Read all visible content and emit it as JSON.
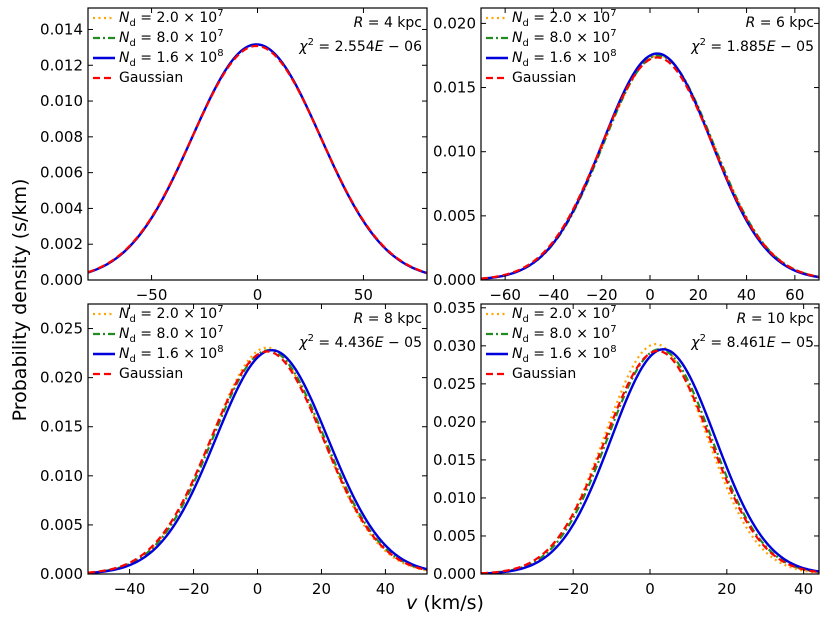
{
  "figure": {
    "ylabel": "Probability density (s/km)",
    "xlabel": "v (km/s)"
  },
  "legend": {
    "labels": [
      "N_d = 2.0 × 10^7",
      "N_d = 8.0 × 10^7",
      "N_d = 1.6 × 10^8",
      "Gaussian"
    ],
    "colors": [
      "#ffa500",
      "#228b22",
      "#0000dd",
      "#ff0000"
    ],
    "styles": [
      "dotted",
      "dashdot",
      "solid",
      "dashed"
    ]
  },
  "chart_data": [
    {
      "type": "line",
      "title": "",
      "annotation_R": "R = 4 kpc",
      "annotation_chi2": "χ² = 2.554E − 06",
      "xlim": [
        -80,
        80
      ],
      "ylim": [
        0,
        0.0152
      ],
      "xticks": [
        -50,
        0,
        50
      ],
      "yticks": [
        0.0,
        0.002,
        0.004,
        0.006,
        0.008,
        0.01,
        0.012,
        0.014
      ],
      "yformat": 3,
      "series": [
        {
          "name": "N_d = 2.0 × 10^7",
          "mean": -0.5,
          "sigma": 30.3
        },
        {
          "name": "N_d = 8.0 × 10^7",
          "mean": -0.5,
          "sigma": 30.3
        },
        {
          "name": "N_d = 1.6 × 10^8",
          "mean": -0.5,
          "sigma": 30.3
        },
        {
          "name": "Gaussian",
          "mean": -0.5,
          "sigma": 30.5
        }
      ]
    },
    {
      "type": "line",
      "title": "",
      "annotation_R": "R = 6 kpc",
      "annotation_chi2": "χ² = 1.885E − 05",
      "xlim": [
        -70,
        70
      ],
      "ylim": [
        0,
        0.0212
      ],
      "xticks": [
        -60,
        -40,
        -20,
        0,
        20,
        40,
        60
      ],
      "yticks": [
        0.0,
        0.005,
        0.01,
        0.015,
        0.02
      ],
      "yformat": 3,
      "series": [
        {
          "name": "N_d = 2.0 × 10^7",
          "mean": 3.5,
          "sigma": 22.8
        },
        {
          "name": "N_d = 8.0 × 10^7",
          "mean": 3.5,
          "sigma": 22.8
        },
        {
          "name": "N_d = 1.6 × 10^8",
          "mean": 3.0,
          "sigma": 22.6
        },
        {
          "name": "Gaussian",
          "mean": 3.0,
          "sigma": 23.0
        }
      ]
    },
    {
      "type": "line",
      "title": "",
      "annotation_R": "R = 8 kpc",
      "annotation_chi2": "χ² = 4.436E − 05",
      "xlim": [
        -53,
        53
      ],
      "ylim": [
        0,
        0.0275
      ],
      "xticks": [
        -40,
        -20,
        0,
        20,
        40
      ],
      "yticks": [
        0.0,
        0.005,
        0.01,
        0.015,
        0.02,
        0.025
      ],
      "yformat": 3,
      "series": [
        {
          "name": "N_d = 2.0 × 10^7",
          "mean": 3.0,
          "sigma": 17.3
        },
        {
          "name": "N_d = 8.0 × 10^7",
          "mean": 3.5,
          "sigma": 17.5
        },
        {
          "name": "N_d = 1.6 × 10^8",
          "mean": 4.5,
          "sigma": 17.5
        },
        {
          "name": "Gaussian",
          "mean": 3.0,
          "sigma": 17.6
        }
      ]
    },
    {
      "type": "line",
      "title": "",
      "annotation_R": "R = 10 kpc",
      "annotation_chi2": "χ² = 8.461E − 05",
      "xlim": [
        -44,
        44
      ],
      "ylim": [
        0,
        0.0355
      ],
      "xticks": [
        -20,
        0,
        20,
        40
      ],
      "yticks": [
        0.0,
        0.005,
        0.01,
        0.015,
        0.02,
        0.025,
        0.03,
        0.035
      ],
      "yformat": 3,
      "series": [
        {
          "name": "N_d = 2.0 × 10^7",
          "mean": 1.5,
          "sigma": 13.2
        },
        {
          "name": "N_d = 8.0 × 10^7",
          "mean": 2.5,
          "sigma": 13.5
        },
        {
          "name": "N_d = 1.6 × 10^8",
          "mean": 3.5,
          "sigma": 13.5
        },
        {
          "name": "Gaussian",
          "mean": 2.0,
          "sigma": 13.6
        }
      ]
    }
  ]
}
